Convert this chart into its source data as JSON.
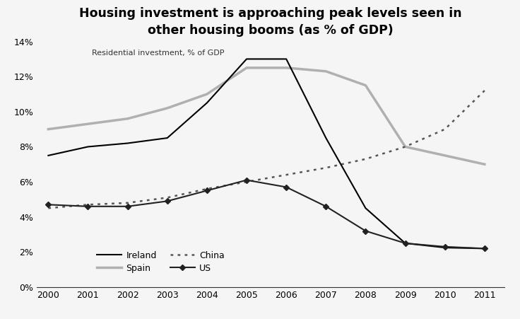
{
  "title": "Housing investment is approaching peak levels seen in\nother housing booms (as % of GDP)",
  "annotation": "Residential investment, % of GDP",
  "ireland_data": {
    "x": [
      2000,
      2001,
      2002,
      2003,
      2004,
      2005,
      2006,
      2007,
      2008,
      2009,
      2010,
      2011
    ],
    "y": [
      7.5,
      8.0,
      8.2,
      8.5,
      10.5,
      13.0,
      13.0,
      8.5,
      4.5,
      2.5,
      2.25,
      2.2
    ]
  },
  "spain_data": {
    "x": [
      2000,
      2001,
      2002,
      2003,
      2004,
      2005,
      2006,
      2007,
      2008,
      2009,
      2010,
      2011
    ],
    "y": [
      9.0,
      9.3,
      9.6,
      10.2,
      11.0,
      12.5,
      12.5,
      12.3,
      11.5,
      8.0,
      7.5,
      7.0
    ]
  },
  "china_data": {
    "x": [
      2000,
      2001,
      2002,
      2003,
      2004,
      2005,
      2006,
      2007,
      2008,
      2009,
      2010,
      2011
    ],
    "y": [
      4.5,
      4.7,
      4.8,
      5.1,
      5.6,
      6.0,
      6.4,
      6.8,
      7.3,
      8.0,
      9.0,
      11.2
    ]
  },
  "us_data": {
    "x": [
      2000,
      2001,
      2002,
      2003,
      2004,
      2005,
      2006,
      2007,
      2008,
      2009,
      2010,
      2011
    ],
    "y": [
      4.7,
      4.6,
      4.6,
      4.9,
      5.5,
      6.1,
      5.7,
      4.6,
      3.2,
      2.5,
      2.3,
      2.2
    ]
  },
  "ireland_color": "#000000",
  "spain_color": "#b0b0b0",
  "china_color": "#555555",
  "us_color": "#222222",
  "background_color": "#f5f5f5",
  "ylim": [
    0,
    14
  ],
  "yticks": [
    0,
    2,
    4,
    6,
    8,
    10,
    12,
    14
  ],
  "xlim": [
    1999.7,
    2011.5
  ],
  "xticks": [
    2000,
    2001,
    2002,
    2003,
    2004,
    2005,
    2006,
    2007,
    2008,
    2009,
    2010,
    2011
  ],
  "figsize": [
    7.36,
    4.51
  ],
  "dpi": 100
}
